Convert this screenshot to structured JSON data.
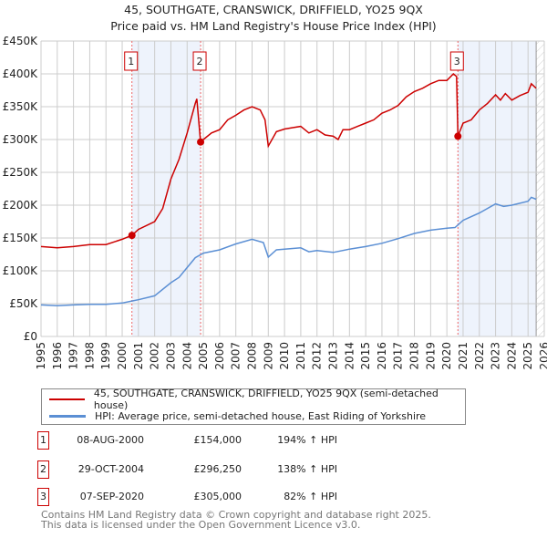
{
  "chart_data": {
    "type": "line",
    "title": "45, SOUTHGATE, CRANSWICK, DRIFFIELD, YO25 9QX",
    "subtitle": "Price paid vs. HM Land Registry's House Price Index (HPI)",
    "xlim": [
      1995,
      2026
    ],
    "ylim": [
      0,
      450000
    ],
    "x_ticks": [
      "1995",
      "1996",
      "1997",
      "1998",
      "1999",
      "2000",
      "2001",
      "2002",
      "2003",
      "2004",
      "2005",
      "2006",
      "2007",
      "2008",
      "2009",
      "2010",
      "2011",
      "2012",
      "2013",
      "2014",
      "2015",
      "2016",
      "2017",
      "2018",
      "2019",
      "2020",
      "2021",
      "2022",
      "2023",
      "2024",
      "2025",
      "2026"
    ],
    "y_ticks": [
      {
        "v": 0,
        "label": "£0"
      },
      {
        "v": 50000,
        "label": "£50K"
      },
      {
        "v": 100000,
        "label": "£100K"
      },
      {
        "v": 150000,
        "label": "£150K"
      },
      {
        "v": 200000,
        "label": "£200K"
      },
      {
        "v": 250000,
        "label": "£250K"
      },
      {
        "v": 300000,
        "label": "£300K"
      },
      {
        "v": 350000,
        "label": "£350K"
      },
      {
        "v": 400000,
        "label": "£400K"
      },
      {
        "v": 450000,
        "label": "£450K"
      }
    ],
    "grid": true,
    "shaded_periods": [
      [
        2000.6,
        2004.83
      ],
      [
        2020.68,
        2025.5
      ]
    ],
    "forecast_hatch_from": 2025.5,
    "series": [
      {
        "name": "45, SOUTHGATE, CRANSWICK, DRIFFIELD, YO25 9QX (semi-detached house)",
        "color": "#cc0000",
        "x": [
          1995,
          1996,
          1997,
          1998,
          1999,
          2000,
          2000.6,
          2001,
          2002,
          2002.5,
          2003,
          2003.5,
          2004,
          2004.5,
          2004.6,
          2004.83,
          2005,
          2005.5,
          2006,
          2006.5,
          2007,
          2007.5,
          2008,
          2008.5,
          2008.8,
          2009,
          2009.5,
          2010,
          2010.5,
          2011,
          2011.5,
          2012,
          2012.5,
          2013,
          2013.3,
          2013.6,
          2014,
          2014.5,
          2015,
          2015.5,
          2016,
          2016.5,
          2017,
          2017.5,
          2018,
          2018.5,
          2019,
          2019.5,
          2020,
          2020.4,
          2020.6,
          2020.68,
          2021,
          2021.5,
          2022,
          2022.5,
          2023,
          2023.3,
          2023.6,
          2024,
          2024.5,
          2025,
          2025.2,
          2025.5
        ],
        "y": [
          137000,
          135000,
          137000,
          140000,
          140000,
          148000,
          154000,
          163000,
          175000,
          195000,
          240000,
          270000,
          310000,
          355000,
          362000,
          296250,
          300000,
          310000,
          315000,
          330000,
          337000,
          345000,
          350000,
          345000,
          330000,
          290000,
          312000,
          316000,
          318000,
          320000,
          310000,
          315000,
          307000,
          305000,
          300000,
          315000,
          315000,
          320000,
          325000,
          330000,
          340000,
          345000,
          352000,
          365000,
          373000,
          378000,
          385000,
          390000,
          390000,
          400000,
          396000,
          305000,
          325000,
          330000,
          345000,
          355000,
          368000,
          360000,
          370000,
          360000,
          367000,
          372000,
          385000,
          378000
        ]
      },
      {
        "name": "HPI: Average price, semi-detached house, East Riding of Yorkshire",
        "color": "#5b8fd4",
        "x": [
          1995,
          1996,
          1997,
          1998,
          1999,
          2000,
          2000.6,
          2001,
          2002,
          2003,
          2003.5,
          2004,
          2004.5,
          2005,
          2006,
          2007,
          2008,
          2008.7,
          2009,
          2009.5,
          2010,
          2011,
          2011.5,
          2012,
          2013,
          2014,
          2015,
          2016,
          2017,
          2018,
          2019,
          2020,
          2020.5,
          2021,
          2022,
          2023,
          2023.5,
          2024,
          2025,
          2025.2,
          2025.5
        ],
        "y": [
          48000,
          47000,
          48000,
          49000,
          49000,
          51000,
          54000,
          56000,
          62000,
          82000,
          90000,
          105000,
          120000,
          127000,
          132000,
          141000,
          148000,
          143000,
          121000,
          132000,
          133000,
          135000,
          129000,
          131000,
          128000,
          133000,
          137000,
          142000,
          149000,
          157000,
          162000,
          165000,
          166000,
          177000,
          188000,
          202000,
          198000,
          200000,
          206000,
          212000,
          209000
        ]
      }
    ],
    "sales": [
      {
        "n": "1",
        "x": 2000.6,
        "date": "08-AUG-2000",
        "price": "£154,000",
        "value": 154000,
        "hpi": "194% ↑ HPI"
      },
      {
        "n": "2",
        "x": 2004.83,
        "date": "29-OCT-2004",
        "price": "£296,250",
        "value": 296250,
        "hpi": "138% ↑ HPI"
      },
      {
        "n": "3",
        "x": 2020.68,
        "date": "07-SEP-2020",
        "price": "£305,000",
        "value": 305000,
        "hpi": "82% ↑ HPI"
      }
    ],
    "footer": [
      "Contains HM Land Registry data © Crown copyright and database right 2025.",
      "This data is licensed under the Open Government Licence v3.0."
    ]
  }
}
